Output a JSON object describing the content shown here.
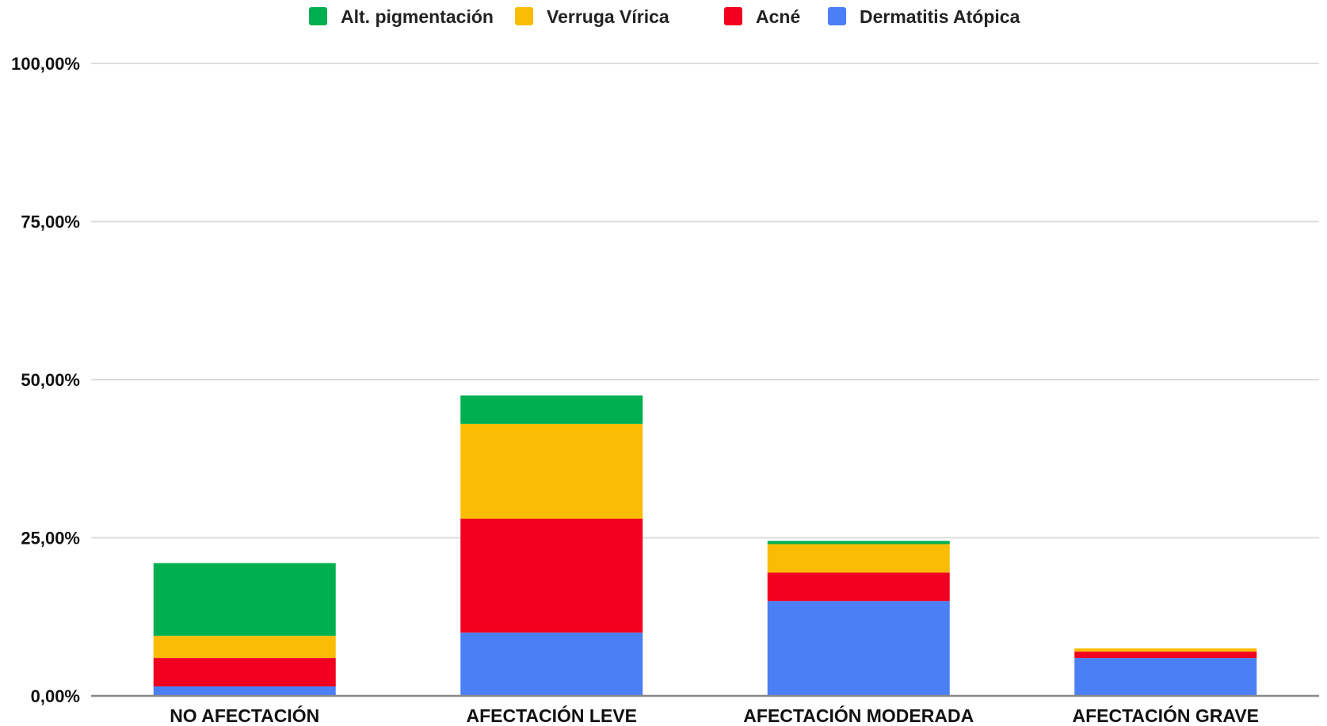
{
  "chart_data": {
    "type": "bar",
    "stacked": true,
    "categories": [
      "NO AFECTACIÓN",
      "AFECTACIÓN LEVE",
      "AFECTACIÓN MODERADA",
      "AFECTACIÓN GRAVE"
    ],
    "series": [
      {
        "name": "Dermatitis Atópica",
        "color": "#4a7ff5",
        "values": [
          1.5,
          10,
          15,
          6
        ]
      },
      {
        "name": "Acné",
        "color": "#f2001f",
        "values": [
          4.5,
          18,
          4.5,
          1
        ]
      },
      {
        "name": "Verruga Vírica",
        "color": "#fbbc04",
        "values": [
          3.5,
          15,
          4.5,
          0.5
        ]
      },
      {
        "name": "Alt. pigmentación",
        "color": "#00b050",
        "values": [
          11.5,
          4.5,
          0.5,
          0
        ]
      }
    ],
    "legend_order": [
      "Alt. pigmentación",
      "Verruga Vírica",
      "Acné",
      "Dermatitis Atópica"
    ],
    "ylim": [
      0,
      100
    ],
    "yticks": [
      0,
      25,
      50,
      75,
      100
    ],
    "ytick_labels": [
      "0,00%",
      "25,00%",
      "50,00%",
      "75,00%",
      "100,00%"
    ],
    "title": "",
    "xlabel": "",
    "ylabel": "",
    "grid": true,
    "legend_position": "top-center"
  }
}
